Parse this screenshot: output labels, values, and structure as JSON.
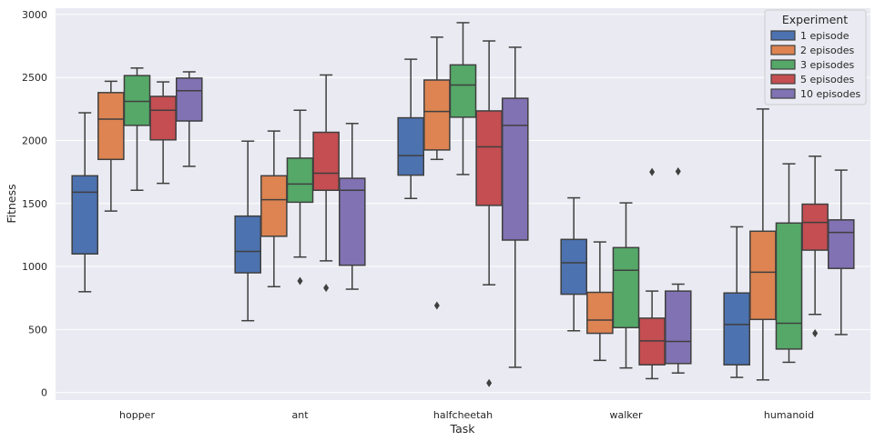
{
  "chart_data": {
    "type": "boxplot",
    "title": "",
    "xlabel": "Task",
    "ylabel": "Fitness",
    "ylim": [
      -60,
      3050
    ],
    "yticks": [
      0,
      500,
      1000,
      1500,
      2000,
      2500,
      3000
    ],
    "categories": [
      "hopper",
      "ant",
      "halfcheetah",
      "walker",
      "humanoid"
    ],
    "legend": {
      "title": "Experiment",
      "position": "top-right"
    },
    "series": [
      {
        "name": "1 episode",
        "color": "#4c72b0",
        "boxes": [
          {
            "whisker_low": 800,
            "q1": 1100,
            "median": 1590,
            "q3": 1720,
            "whisker_high": 2220,
            "outliers": []
          },
          {
            "whisker_low": 570,
            "q1": 950,
            "median": 1120,
            "q3": 1400,
            "whisker_high": 1995,
            "outliers": []
          },
          {
            "whisker_low": 1540,
            "q1": 1725,
            "median": 1880,
            "q3": 2180,
            "whisker_high": 2645,
            "outliers": []
          },
          {
            "whisker_low": 490,
            "q1": 780,
            "median": 1030,
            "q3": 1215,
            "whisker_high": 1545,
            "outliers": []
          },
          {
            "whisker_low": 120,
            "q1": 220,
            "median": 540,
            "q3": 790,
            "whisker_high": 1315,
            "outliers": []
          }
        ]
      },
      {
        "name": "2 episodes",
        "color": "#dd8452",
        "boxes": [
          {
            "whisker_low": 1440,
            "q1": 1850,
            "median": 2170,
            "q3": 2380,
            "whisker_high": 2470,
            "outliers": []
          },
          {
            "whisker_low": 840,
            "q1": 1240,
            "median": 1530,
            "q3": 1720,
            "whisker_high": 2075,
            "outliers": []
          },
          {
            "whisker_low": 1850,
            "q1": 1925,
            "median": 2230,
            "q3": 2480,
            "whisker_high": 2820,
            "outliers": [
              690
            ]
          },
          {
            "whisker_low": 255,
            "q1": 470,
            "median": 575,
            "q3": 795,
            "whisker_high": 1195,
            "outliers": []
          },
          {
            "whisker_low": 100,
            "q1": 580,
            "median": 955,
            "q3": 1280,
            "whisker_high": 2250,
            "outliers": []
          }
        ]
      },
      {
        "name": "3 episodes",
        "color": "#55a868",
        "boxes": [
          {
            "whisker_low": 1605,
            "q1": 2120,
            "median": 2310,
            "q3": 2515,
            "whisker_high": 2575,
            "outliers": []
          },
          {
            "whisker_low": 1075,
            "q1": 1510,
            "median": 1655,
            "q3": 1860,
            "whisker_high": 2240,
            "outliers": [
              885
            ]
          },
          {
            "whisker_low": 1730,
            "q1": 2185,
            "median": 2440,
            "q3": 2600,
            "whisker_high": 2935,
            "outliers": []
          },
          {
            "whisker_low": 195,
            "q1": 515,
            "median": 970,
            "q3": 1150,
            "whisker_high": 1505,
            "outliers": []
          },
          {
            "whisker_low": 240,
            "q1": 345,
            "median": 550,
            "q3": 1345,
            "whisker_high": 1815,
            "outliers": []
          }
        ]
      },
      {
        "name": "5 episodes",
        "color": "#c44e52",
        "boxes": [
          {
            "whisker_low": 1660,
            "q1": 2005,
            "median": 2240,
            "q3": 2350,
            "whisker_high": 2465,
            "outliers": []
          },
          {
            "whisker_low": 1045,
            "q1": 1605,
            "median": 1740,
            "q3": 2065,
            "whisker_high": 2520,
            "outliers": [
              830
            ]
          },
          {
            "whisker_low": 855,
            "q1": 1485,
            "median": 1950,
            "q3": 2235,
            "whisker_high": 2790,
            "outliers": [
              75
            ]
          },
          {
            "whisker_low": 110,
            "q1": 220,
            "median": 410,
            "q3": 590,
            "whisker_high": 805,
            "outliers": [
              1750
            ]
          },
          {
            "whisker_low": 620,
            "q1": 1130,
            "median": 1350,
            "q3": 1495,
            "whisker_high": 1875,
            "outliers": [
              470
            ]
          }
        ]
      },
      {
        "name": "10 episodes",
        "color": "#8172b3",
        "boxes": [
          {
            "whisker_low": 1795,
            "q1": 2155,
            "median": 2395,
            "q3": 2495,
            "whisker_high": 2545,
            "outliers": []
          },
          {
            "whisker_low": 820,
            "q1": 1010,
            "median": 1605,
            "q3": 1700,
            "whisker_high": 2135,
            "outliers": []
          },
          {
            "whisker_low": 200,
            "q1": 1210,
            "median": 2120,
            "q3": 2335,
            "whisker_high": 2740,
            "outliers": []
          },
          {
            "whisker_low": 155,
            "q1": 230,
            "median": 405,
            "q3": 805,
            "whisker_high": 860,
            "outliers": [
              1755
            ]
          },
          {
            "whisker_low": 460,
            "q1": 985,
            "median": 1270,
            "q3": 1370,
            "whisker_high": 1765,
            "outliers": []
          }
        ]
      }
    ]
  }
}
